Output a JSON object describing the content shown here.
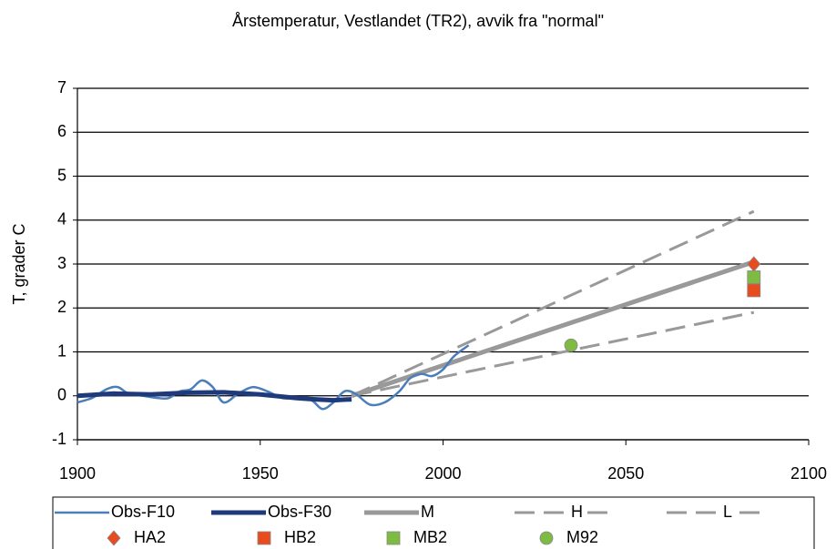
{
  "chart_data": {
    "type": "line",
    "title": "Årstemperatur, Vestlandet (TR2), avvik fra \"normal\"",
    "y_label": "T, grader C",
    "xlim": [
      1900,
      2100
    ],
    "xticks": [
      1900,
      1950,
      2000,
      2050,
      2100
    ],
    "ylim": [
      -1,
      7
    ],
    "yticks": [
      -1,
      0,
      1,
      2,
      3,
      4,
      5,
      6,
      7
    ],
    "grid": true,
    "legend": "bottom",
    "series": [
      {
        "name": "Obs-F10",
        "color": "#4a7ebb",
        "line_style": "solid",
        "line_weight": "thin",
        "x": [
          1900,
          1904,
          1908,
          1911,
          1914,
          1918,
          1922,
          1925,
          1928,
          1931,
          1934,
          1937,
          1940,
          1944,
          1948,
          1952,
          1956,
          1960,
          1964,
          1967,
          1970,
          1973,
          1976,
          1980,
          1984,
          1988,
          1991,
          1994,
          1997,
          2000,
          2003,
          2007
        ],
        "values": [
          -0.15,
          -0.05,
          0.15,
          0.2,
          0.05,
          0.0,
          -0.05,
          -0.05,
          0.1,
          0.15,
          0.35,
          0.2,
          -0.15,
          0.05,
          0.2,
          0.1,
          -0.05,
          -0.05,
          -0.1,
          -0.3,
          -0.15,
          0.1,
          0.05,
          -0.2,
          -0.15,
          0.1,
          0.4,
          0.5,
          0.45,
          0.6,
          0.9,
          1.15
        ]
      },
      {
        "name": "Obs-F30",
        "color": "#1f3a7a",
        "line_style": "solid",
        "line_weight": "thick",
        "x": [
          1900,
          1910,
          1920,
          1930,
          1940,
          1950,
          1960,
          1965,
          1970,
          1975
        ],
        "values": [
          0.0,
          0.05,
          0.03,
          0.07,
          0.08,
          0.03,
          -0.05,
          -0.08,
          -0.1,
          -0.08
        ]
      },
      {
        "name": "M",
        "color": "#999999",
        "line_style": "solid",
        "line_weight": "thick",
        "x": [
          1975,
          2085
        ],
        "values": [
          0,
          3.05
        ]
      },
      {
        "name": "H",
        "color": "#999999",
        "line_style": "dashed",
        "line_weight": "medium",
        "x": [
          1975,
          2085
        ],
        "values": [
          0,
          4.2
        ]
      },
      {
        "name": "L",
        "color": "#999999",
        "line_style": "dashed",
        "line_weight": "medium",
        "x": [
          1975,
          2085
        ],
        "values": [
          0,
          1.9
        ]
      },
      {
        "name": "HA2",
        "color": "#e84c1e",
        "marker": "diamond",
        "x": [
          2085
        ],
        "values": [
          3.0
        ]
      },
      {
        "name": "HB2",
        "color": "#e84c1e",
        "marker": "square",
        "x": [
          2085
        ],
        "values": [
          2.4
        ]
      },
      {
        "name": "MB2",
        "color": "#7dbb42",
        "marker": "square",
        "x": [
          2085
        ],
        "values": [
          2.7
        ]
      },
      {
        "name": "M92",
        "color": "#7dbb42",
        "marker": "circle",
        "x": [
          2035
        ],
        "values": [
          1.15
        ]
      }
    ]
  }
}
